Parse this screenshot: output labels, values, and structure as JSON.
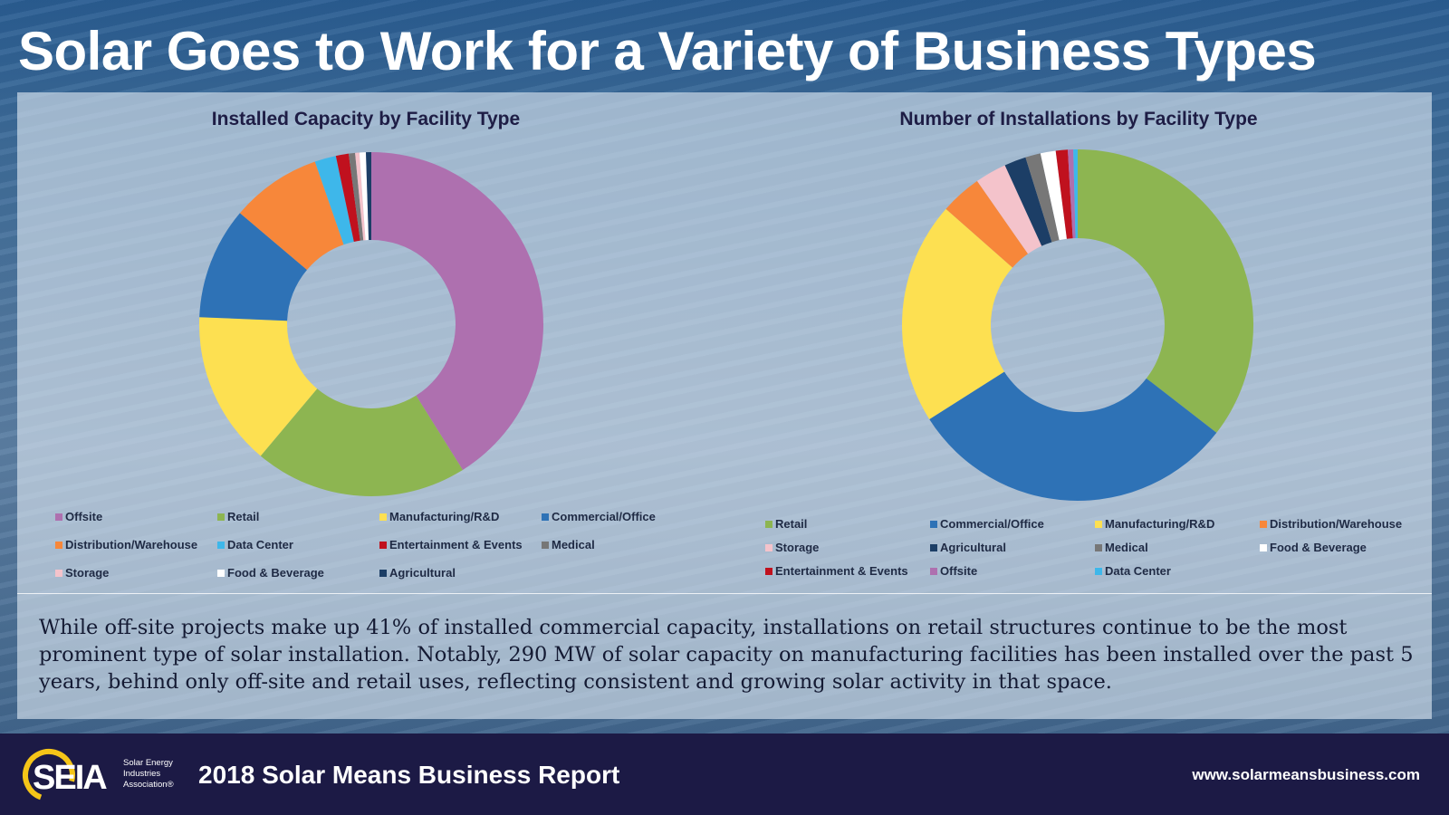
{
  "title": "Solar Goes to Work for a Variety of Business Types",
  "caption": "While off-site projects make up 41% of installed commercial capacity, installations on retail structures continue to be the most prominent type of solar installation. Notably, 290 MW of solar capacity on manufacturing facilities has been installed over the past 5 years, behind only off-site and retail uses, reflecting consistent and growing solar activity in that space.",
  "footer": {
    "logo_text": "SEIA",
    "logo_subtext": [
      "Solar Energy",
      "Industries",
      "Association®"
    ],
    "report_title": "2018 Solar Means Business Report",
    "website": "www.solarmeansbusiness.com"
  },
  "colors": {
    "Offsite": "#ae70af",
    "Retail": "#8db551",
    "Manufacturing/R&D": "#fde051",
    "Commercial/Office": "#2e72b6",
    "Distribution/Warehouse": "#f7873a",
    "Data Center": "#3eb7ea",
    "Entertainment & Events": "#c0111e",
    "Medical": "#777777",
    "Storage": "#f4c3cb",
    "Food & Beverage": "#ffffff",
    "Agricultural": "#1c3e66"
  },
  "chart_data": [
    {
      "type": "pie",
      "title": "Installed Capacity by Facility Type",
      "donut": true,
      "legend_position": "bottom",
      "categories": [
        "Offsite",
        "Retail",
        "Manufacturing/R&D",
        "Commercial/Office",
        "Distribution/Warehouse",
        "Data Center",
        "Entertainment & Events",
        "Medical",
        "Storage",
        "Food & Beverage",
        "Agricultural"
      ],
      "values": [
        41,
        20,
        14.5,
        10.5,
        8.5,
        2,
        1.2,
        0.6,
        0.4,
        0.6,
        0.5
      ],
      "slice_order": [
        "Offsite",
        "Retail",
        "Manufacturing/R&D",
        "Commercial/Office",
        "Distribution/Warehouse",
        "Data Center",
        "Entertainment & Events",
        "Medical",
        "Storage",
        "Food & Beverage",
        "Agricultural"
      ],
      "legend_order": [
        "Offsite",
        "Retail",
        "Manufacturing/R&D",
        "Commercial/Office",
        "Distribution/Warehouse",
        "Data Center",
        "Entertainment & Events",
        "Medical",
        "Storage",
        "Food & Beverage",
        "Agricultural"
      ]
    },
    {
      "type": "pie",
      "title": "Number of Installations by Facility Type",
      "donut": true,
      "legend_position": "bottom",
      "categories": [
        "Retail",
        "Commercial/Office",
        "Manufacturing/R&D",
        "Distribution/Warehouse",
        "Storage",
        "Agricultural",
        "Medical",
        "Food & Beverage",
        "Entertainment & Events",
        "Offsite",
        "Data Center"
      ],
      "values": [
        35.5,
        30.5,
        20.5,
        3.8,
        2.9,
        2,
        1.4,
        1.4,
        1.1,
        0.5,
        0.4
      ],
      "slice_order": [
        "Retail",
        "Commercial/Office",
        "Manufacturing/R&D",
        "Distribution/Warehouse",
        "Storage",
        "Agricultural",
        "Medical",
        "Food & Beverage",
        "Entertainment & Events",
        "Offsite",
        "Data Center"
      ],
      "legend_order": [
        "Retail",
        "Commercial/Office",
        "Manufacturing/R&D",
        "Distribution/Warehouse",
        "Storage",
        "Agricultural",
        "Medical",
        "Food & Beverage",
        "Entertainment & Events",
        "Offsite",
        "Data Center"
      ]
    }
  ]
}
